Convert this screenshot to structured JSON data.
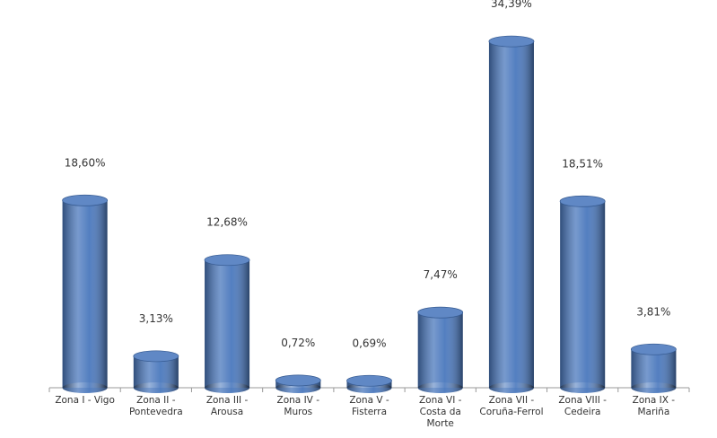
{
  "chart_data": {
    "type": "bar",
    "categories": [
      "Zona I - Vigo",
      "Zona II - Pontevedra",
      "Zona III - Arousa",
      "Zona IV - Muros",
      "Zona V - Fisterra",
      "Zona VI - Costa da Morte",
      "Zona VII - Coruña-Ferrol",
      "Zona VIII - Cedeira",
      "Zona IX - Mariña"
    ],
    "values": [
      18.6,
      3.13,
      12.68,
      0.72,
      0.69,
      7.47,
      34.39,
      18.51,
      3.81
    ],
    "value_labels": [
      "18,60%",
      "3,13%",
      "12,68%",
      "0,72%",
      "0,69%",
      "7,47%",
      "34,39%",
      "18,51%",
      "3,81%"
    ],
    "color": "#4a78bd"
  }
}
